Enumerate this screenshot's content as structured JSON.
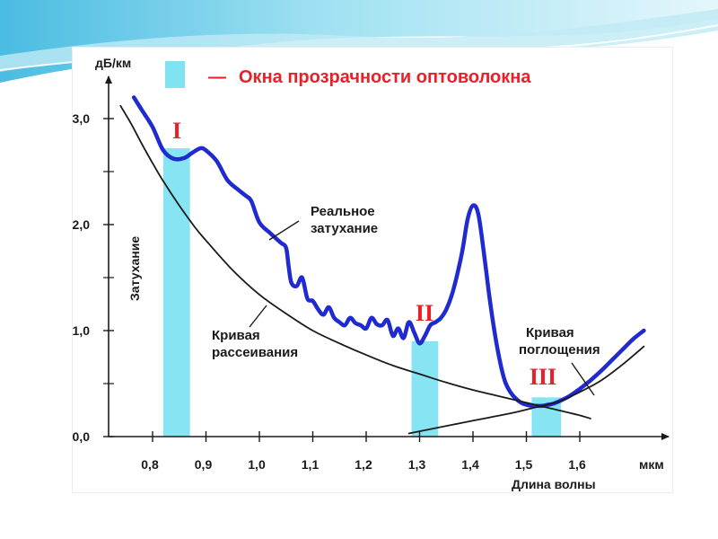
{
  "chart_data": {
    "type": "line",
    "title": "",
    "legend": {
      "label": "Окна прозрачности оптоволокна",
      "placement": "top",
      "swatch_color": "#7fe3f2"
    },
    "y_unit": "дБ/км",
    "ylabel": "Затухание",
    "x_unit": "мкм",
    "xlabel": "Длина волны",
    "xlim": [
      0.7,
      1.72
    ],
    "ylim": [
      0,
      3.25
    ],
    "x_ticks": [
      0.8,
      0.9,
      1.0,
      1.1,
      1.2,
      1.3,
      1.4,
      1.5,
      1.6
    ],
    "x_tick_labels": [
      "0,8",
      "0,9",
      "1,0",
      "1,1",
      "1,2",
      "1,3",
      "1,4",
      "1,5",
      "1,6"
    ],
    "y_ticks": [
      0.0,
      1.0,
      2.0,
      3.0
    ],
    "y_tick_labels": [
      "0,0",
      "1,0",
      "2,0",
      "3,0"
    ],
    "y_minor_ticks": [
      0.5,
      1.5,
      2.5
    ],
    "windows": [
      {
        "label": "I",
        "x_start": 0.82,
        "x_end": 0.87,
        "height": 2.72
      },
      {
        "label": "II",
        "x_start": 1.285,
        "x_end": 1.335,
        "height": 0.9
      },
      {
        "label": "III",
        "x_start": 1.51,
        "x_end": 1.565,
        "height": 0.37
      }
    ],
    "series": [
      {
        "name": "Реальное затухание",
        "color": "#1f2ad0",
        "x": [
          0.765,
          0.78,
          0.8,
          0.82,
          0.84,
          0.86,
          0.875,
          0.89,
          0.9,
          0.92,
          0.94,
          0.96,
          0.975,
          0.985,
          1.0,
          1.02,
          1.04,
          1.05,
          1.055,
          1.06,
          1.07,
          1.08,
          1.09,
          1.1,
          1.11,
          1.12,
          1.13,
          1.14,
          1.15,
          1.16,
          1.17,
          1.18,
          1.19,
          1.2,
          1.21,
          1.22,
          1.23,
          1.24,
          1.25,
          1.26,
          1.27,
          1.28,
          1.29,
          1.3,
          1.31,
          1.32,
          1.33,
          1.34,
          1.35,
          1.36,
          1.37,
          1.38,
          1.39,
          1.4,
          1.41,
          1.42,
          1.43,
          1.44,
          1.45,
          1.46,
          1.47,
          1.48,
          1.49,
          1.5,
          1.51,
          1.52,
          1.53,
          1.54,
          1.55,
          1.56,
          1.58,
          1.6,
          1.62,
          1.64,
          1.66,
          1.68,
          1.7,
          1.72
        ],
        "y": [
          3.2,
          3.08,
          2.92,
          2.7,
          2.62,
          2.63,
          2.68,
          2.72,
          2.7,
          2.6,
          2.42,
          2.33,
          2.27,
          2.22,
          2.02,
          1.92,
          1.83,
          1.78,
          1.6,
          1.45,
          1.42,
          1.5,
          1.3,
          1.28,
          1.2,
          1.15,
          1.22,
          1.12,
          1.08,
          1.05,
          1.12,
          1.07,
          1.05,
          1.02,
          1.12,
          1.06,
          1.05,
          1.1,
          0.95,
          1.02,
          0.93,
          1.08,
          0.98,
          0.88,
          0.95,
          1.05,
          1.08,
          1.12,
          1.2,
          1.33,
          1.52,
          1.75,
          2.05,
          2.18,
          2.1,
          1.75,
          1.35,
          1.0,
          0.72,
          0.52,
          0.42,
          0.36,
          0.32,
          0.3,
          0.29,
          0.29,
          0.29,
          0.3,
          0.31,
          0.33,
          0.38,
          0.45,
          0.53,
          0.62,
          0.72,
          0.82,
          0.92,
          1.0
        ]
      },
      {
        "name": "Кривая рассеивания",
        "color": "#1a1a1a",
        "x": [
          0.74,
          0.76,
          0.78,
          0.8,
          0.82,
          0.85,
          0.88,
          0.9,
          0.95,
          1.0,
          1.05,
          1.1,
          1.15,
          1.2,
          1.25,
          1.3,
          1.35,
          1.4,
          1.45,
          1.5,
          1.55,
          1.6,
          1.62
        ],
        "y": [
          3.12,
          2.95,
          2.76,
          2.58,
          2.41,
          2.18,
          1.97,
          1.85,
          1.57,
          1.34,
          1.16,
          1.0,
          0.88,
          0.77,
          0.67,
          0.59,
          0.51,
          0.44,
          0.38,
          0.32,
          0.26,
          0.2,
          0.17
        ]
      },
      {
        "name": "Кривая поглощения",
        "color": "#1a1a1a",
        "x": [
          1.28,
          1.32,
          1.36,
          1.4,
          1.44,
          1.48,
          1.52,
          1.56,
          1.6,
          1.64,
          1.68,
          1.72
        ],
        "y": [
          0.03,
          0.07,
          0.11,
          0.15,
          0.19,
          0.23,
          0.28,
          0.33,
          0.42,
          0.53,
          0.68,
          0.85
        ]
      }
    ],
    "annotations": [
      {
        "text_lines": [
          "Реальное",
          "затухание"
        ],
        "series": "Реальное затухание"
      },
      {
        "text_lines": [
          "Кривая",
          "рассеивания"
        ],
        "series": "Кривая рассеивания"
      },
      {
        "text_lines": [
          "Кривая",
          "поглощения"
        ],
        "series": "Кривая поглощения"
      }
    ],
    "grid": false
  }
}
